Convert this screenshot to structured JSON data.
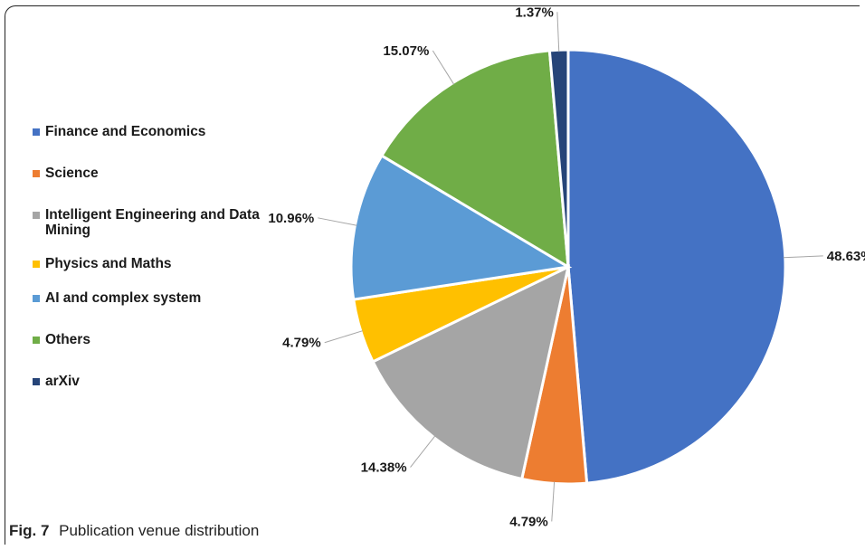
{
  "chart_data": {
    "type": "pie",
    "title": "",
    "categories": [
      "Finance and Economics",
      "Science",
      "Intelligent Engineering and Data Mining",
      "Physics and Maths",
      "AI and complex system",
      "Others",
      "arXiv"
    ],
    "values": [
      48.63,
      4.79,
      14.38,
      4.79,
      10.96,
      15.07,
      1.37
    ],
    "data_labels": [
      "48.63%",
      "4.79%",
      "14.38%",
      "4.79%",
      "10.96%",
      "15.07%",
      "1.37%"
    ],
    "colors": [
      "#4472C4",
      "#ED7D31",
      "#A5A5A5",
      "#FFC000",
      "#5B9BD5",
      "#70AD47",
      "#264478"
    ],
    "start_angle_deg": 0,
    "direction": "clockwise",
    "legend_position": "left"
  },
  "caption": {
    "label": "Fig. 7",
    "text": "Publication venue distribution"
  }
}
